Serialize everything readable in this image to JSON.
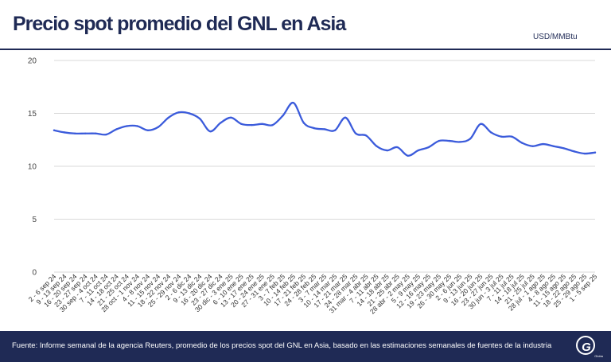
{
  "header": {
    "title": "Precio spot promedio del GNL en Asia",
    "unit": "USD/MMBtu"
  },
  "footer": {
    "source": "Fuente: Informe semanal de la agencia Reuters, promedio de los precios spot del GNL en Asia, basado en las estimaciones semanales de fuentes de la industria",
    "logo_text": "GNL",
    "logo_subtext": "Global"
  },
  "colors": {
    "navy": "#1f2a55",
    "line": "#3b5bdb",
    "grid": "#d9d9d9"
  },
  "chart_data": {
    "type": "line",
    "title": "Precio spot promedio del GNL en Asia",
    "ylabel": "USD/MMBtu",
    "ylim": [
      0,
      20
    ],
    "yticks": [
      0,
      5,
      10,
      15,
      20
    ],
    "grid": true,
    "series": [
      {
        "values": [
          13.4,
          13.2,
          13.1,
          13.1,
          13.1,
          13.0,
          13.5,
          13.8,
          13.8,
          13.4,
          13.7,
          14.6,
          15.1,
          15.0,
          14.5,
          13.3,
          14.1,
          14.6,
          14.0,
          13.9,
          14.0,
          13.9,
          14.8,
          16.0,
          14.1,
          13.6,
          13.5,
          13.4,
          14.6,
          13.1,
          12.9,
          11.9,
          11.5,
          11.8,
          11.0,
          11.5,
          11.8,
          12.4,
          12.4,
          12.3,
          12.6,
          14.0,
          13.2,
          12.8,
          12.8,
          12.2,
          11.9,
          12.1,
          11.9,
          11.7,
          11.4,
          11.2,
          11.3
        ]
      }
    ],
    "categories": [
      "2 - 6 sep 24",
      "9 - 13 sep 24",
      "16 - 20 sep 24",
      "23 - 27 sep 24",
      "30 sep - 4 oct 24",
      "7 - 11 oct 24",
      "14 - 18 oct 24",
      "21 - 25 oct 24",
      "28 oct - 1 nov 24",
      "4 - 8 nov 24",
      "11 - 15 nov 24",
      "18 - 22 nov 24",
      "25 - 29 nov 24",
      "2 - 6 dic 24",
      "9 - 13 dic 24",
      "16 - 20 dic 24",
      "23 - 27 dic 24",
      "30 dic - 3 ene 25",
      "6 - 10 ene 25",
      "13 - 17 ene 25",
      "20 - 24 ene 25",
      "27 - 31 ene 25",
      "3 - 7 feb 25",
      "10 - 14 feb 25",
      "17 - 21 feb 25",
      "24 - 28 feb 25",
      "3 - 7 mar 25",
      "10 - 14 mar 25",
      "17 - 21 mar 25",
      "24 - 28 mar 25",
      "31 mar - 4 abr 25",
      "7 - 11 abr 25",
      "14 - 18 abr 25",
      "21 - 25 abr 25",
      "28 abr - 2 may 25",
      "5 - 9 may 25",
      "12 - 16 may 25",
      "19 - 23 may 25",
      "26 - 30 may 25",
      "2 - 6 jun 25",
      "9 - 13 jun 25",
      "16 - 20 jun 25",
      "23 - 27 jun 25",
      "30 jun - 3 jul 25",
      "7 - 11 jul 25",
      "14 - 18 jul 25",
      "21 - 25 jul 25",
      "28 jul - 1 ago 25",
      "4 - 8 ago 25",
      "11 - 15 ago 25",
      "18 - 22 ago 25",
      "25 - 29 ago 25",
      "1 - 5 sep 25"
    ]
  }
}
